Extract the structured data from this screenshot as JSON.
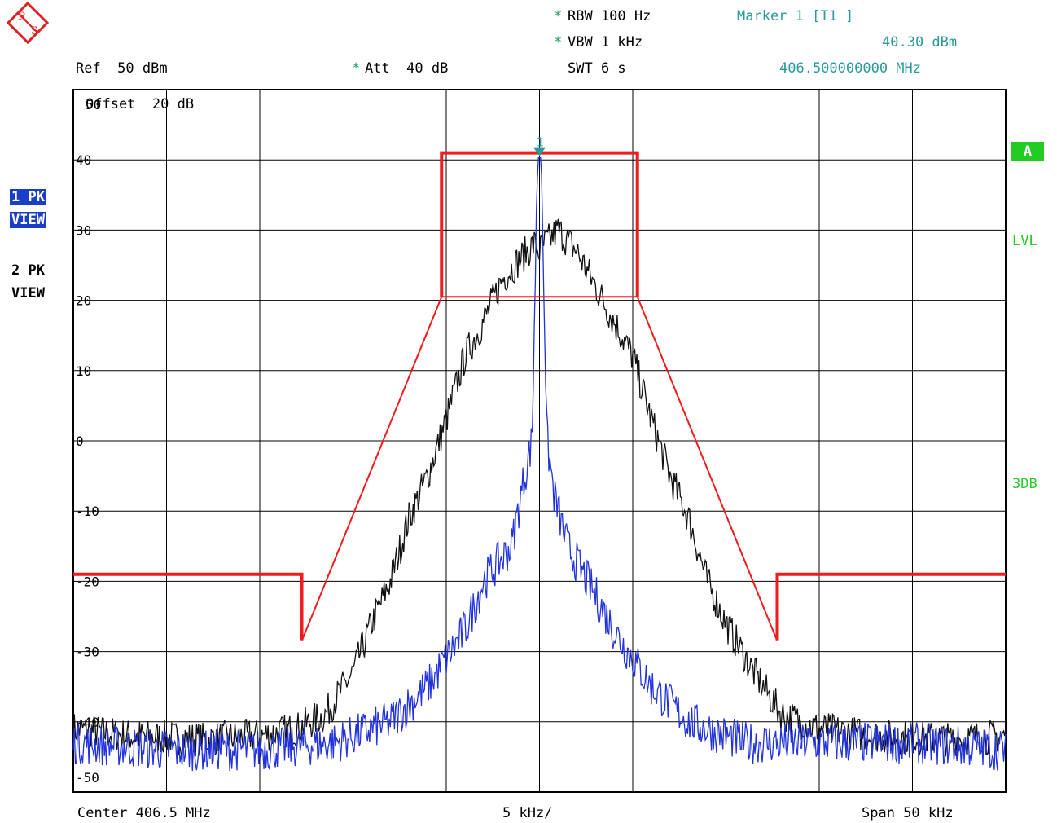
{
  "header": {
    "logo_letters": "R S",
    "rbw": "RBW 100 Hz",
    "vbw": "VBW 1 kHz",
    "ref": "Ref  50 dBm",
    "att": "Att  40 dB",
    "swt": "SWT 6 s",
    "marker_title": "Marker 1 [T1 ]",
    "marker_level": "40.30 dBm",
    "marker_freq": "406.500000000 MHz",
    "offset": "Offset  20 dB",
    "star": "*"
  },
  "side": {
    "trace1_line1": "1 PK",
    "trace1_line2": "VIEW",
    "trace2_line1": "2 PK",
    "trace2_line2": "VIEW",
    "badge_a": "A",
    "lvl": "LVL",
    "three_db": "3DB"
  },
  "footer": {
    "center": "Center 406.5 MHz",
    "per_div": "5 kHz/",
    "span": "Span 50 kHz"
  },
  "colors": {
    "limit_line": "#ee1c1c",
    "trace1": "#111111",
    "trace2": "#2233dd",
    "marker": "#2a9a9a",
    "grid": "#000000"
  },
  "chart_data": {
    "type": "line",
    "title": "",
    "xlabel": "",
    "ylabel": "",
    "xlim": [
      -25,
      25
    ],
    "ylim": [
      -50,
      50
    ],
    "x_unit": "kHz offset from center",
    "y_unit": "dBm",
    "grid": true,
    "y_tick_labels": [
      "50",
      "40",
      "30",
      "20",
      "10",
      "0",
      "-10",
      "-20",
      "-30",
      "-40",
      "-50"
    ],
    "y_tick_values": [
      50,
      40,
      30,
      20,
      10,
      0,
      -10,
      -20,
      -30,
      -40,
      -50
    ],
    "marker": {
      "label": "1",
      "x": 0,
      "y": 40.3
    },
    "limit_line": {
      "name": "A",
      "thick": [
        [
          -25,
          -19
        ],
        [
          -12.75,
          -19
        ],
        [
          -12.75,
          -28.5
        ]
      ],
      "thick_mid": [
        [
          -5.25,
          20.5
        ],
        [
          -5.25,
          41
        ],
        [
          5.25,
          41
        ],
        [
          5.25,
          20.5
        ]
      ],
      "thick_right": [
        [
          12.75,
          -28.5
        ],
        [
          12.75,
          -19
        ],
        [
          25,
          -19
        ]
      ],
      "thin": [
        [
          -12.75,
          -28.5
        ],
        [
          -5.25,
          20.5
        ],
        [
          5.25,
          20.5
        ],
        [
          12.75,
          -28.5
        ]
      ]
    },
    "series": [
      {
        "trace": "1",
        "x": [
          -25,
          -22,
          -18,
          -15,
          -13,
          -11.5,
          -10,
          -9,
          -8,
          -7,
          -6,
          -5,
          -4,
          -3,
          -2,
          -1,
          -0.3,
          0,
          0.3,
          1,
          2,
          3,
          4,
          5,
          6,
          7,
          8,
          9,
          10,
          11.5,
          13,
          15,
          18,
          22,
          25
        ],
        "y": [
          -41,
          -42,
          -42.5,
          -42,
          -41,
          -39,
          -33,
          -26,
          -20,
          -11,
          -5,
          3,
          12,
          17,
          23,
          26,
          28,
          27,
          28,
          30,
          27,
          22,
          17,
          12,
          3,
          -5,
          -11,
          -20,
          -26,
          -33,
          -39,
          -41,
          -42,
          -42.5,
          -42
        ],
        "noise": 2.5
      },
      {
        "trace": "2",
        "x": [
          -25,
          -20,
          -15,
          -11,
          -8,
          -6,
          -4,
          -3,
          -1.5,
          -0.8,
          -0.4,
          -0.1,
          0,
          0.1,
          0.4,
          0.8,
          1.5,
          3,
          4,
          6,
          8,
          11,
          15,
          20,
          25
        ],
        "y": [
          -43,
          -44,
          -44,
          -43,
          -40,
          -35,
          -27,
          -20,
          -15,
          -5,
          0,
          40.3,
          40.3,
          40.3,
          0,
          -8,
          -15,
          -22,
          -27,
          -35,
          -40,
          -43,
          -43,
          -43,
          -44
        ],
        "noise": 3
      }
    ]
  }
}
